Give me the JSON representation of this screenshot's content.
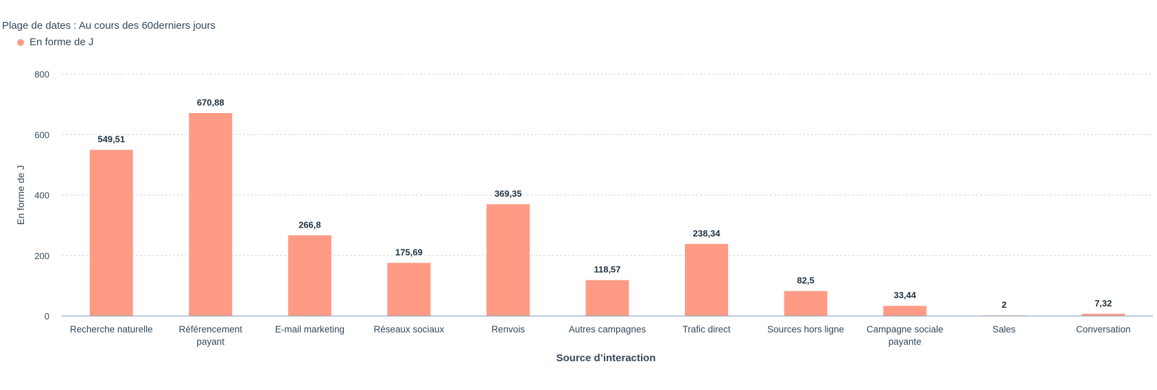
{
  "header": {
    "date_range": "Plage de dates : Au cours des 60derniers jours"
  },
  "legend": {
    "label": "En forme de J",
    "color": "#ff9b85"
  },
  "chart_data": {
    "type": "bar",
    "title": "",
    "xlabel": "Source d’interaction",
    "ylabel": "En forme de J",
    "ylim": [
      0,
      800
    ],
    "yticks": [
      0,
      200,
      400,
      600,
      800
    ],
    "grid": true,
    "legend_position": "top-left",
    "bar_color": "#ff9b85",
    "categories": [
      [
        "Recherche naturelle"
      ],
      [
        "Référencement",
        "payant"
      ],
      [
        "E-mail marketing"
      ],
      [
        "Réseaux sociaux"
      ],
      [
        "Renvois"
      ],
      [
        "Autres campagnes"
      ],
      [
        "Trafic direct"
      ],
      [
        "Sources hors ligne"
      ],
      [
        "Campagne sociale",
        "payante"
      ],
      [
        "Sales"
      ],
      [
        "Conversation"
      ]
    ],
    "series": [
      {
        "name": "En forme de J",
        "values": [
          549.51,
          670.88,
          266.8,
          175.69,
          369.35,
          118.57,
          238.34,
          82.5,
          33.44,
          2,
          7.32
        ],
        "labels": [
          "549,51",
          "670,88",
          "266,8",
          "175,69",
          "369,35",
          "118,57",
          "238,34",
          "82,5",
          "33,44",
          "2",
          "7,32"
        ]
      }
    ]
  }
}
